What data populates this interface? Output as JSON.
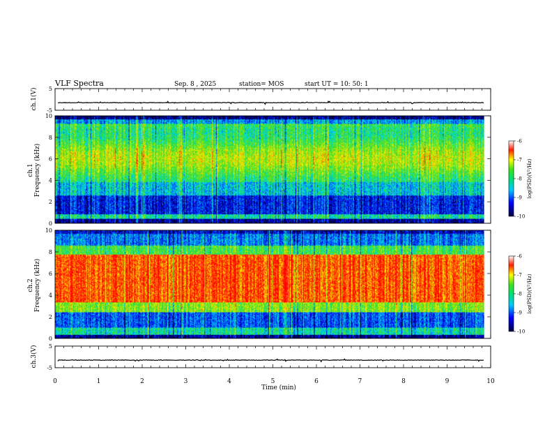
{
  "header": {
    "title": "VLF Spectra",
    "date": "Sep. 8 , 2025",
    "station": "station= MOS",
    "start_ut": "start UT =   10: 50: 1"
  },
  "chart_data": [
    {
      "type": "line",
      "panel": "ch1-waveform",
      "ylabel": "ch.1(V)",
      "ylim": [
        -5,
        5
      ],
      "yticks": [
        "5",
        "-5"
      ],
      "baseline": -1.5,
      "xlim": [
        0,
        10
      ]
    },
    {
      "type": "heatmap",
      "panel": "ch1-spectrogram",
      "ylabel_channel": "ch.1",
      "ylabel": "Frequency (kHz)",
      "ylim": [
        0,
        10
      ],
      "yticks": [
        "0",
        "2",
        "4",
        "6",
        "8",
        "10"
      ],
      "xlim": [
        0,
        9.85
      ],
      "dominant_band_khz": [
        3.5,
        9.5
      ],
      "peak_log_psd": -7.2,
      "colorbar": {
        "label": "log(PSD)(V²/Hz)",
        "range": [
          -10,
          -6
        ],
        "ticks": [
          "-6",
          "-7",
          "-8",
          "-9",
          "-10"
        ]
      }
    },
    {
      "type": "heatmap",
      "panel": "ch2-spectrogram",
      "ylabel_channel": "ch.2",
      "ylabel": "Frequency (kHz)",
      "ylim": [
        0,
        10
      ],
      "yticks": [
        "0",
        "2",
        "4",
        "6",
        "8",
        "10"
      ],
      "xlim": [
        0,
        9.85
      ],
      "dominant_band_khz": [
        3.0,
        7.5
      ],
      "peak_log_psd": -6.5,
      "colorbar": {
        "label": "log(PSD)(V²/Hz)",
        "range": [
          -10,
          -6
        ],
        "ticks": [
          "-6",
          "-7",
          "-8",
          "-9",
          "-10"
        ]
      }
    },
    {
      "type": "line",
      "panel": "ch3-waveform",
      "ylabel": "ch.3(V)",
      "ylim": [
        -5,
        5
      ],
      "yticks": [
        "5",
        "-5"
      ],
      "baseline": -1.5,
      "xlim": [
        0,
        10
      ]
    }
  ],
  "xaxis": {
    "label": "Time  (min)",
    "ticks": [
      "0",
      "1",
      "2",
      "3",
      "4",
      "5",
      "6",
      "7",
      "8",
      "9",
      "10"
    ]
  },
  "colors": {
    "dark": "#00004a",
    "blue": "#0028ff",
    "cyan": "#00e8e0",
    "green": "#3cdc28",
    "yellow": "#f0f000",
    "orange": "#ff8c00",
    "red": "#ff1a00"
  }
}
